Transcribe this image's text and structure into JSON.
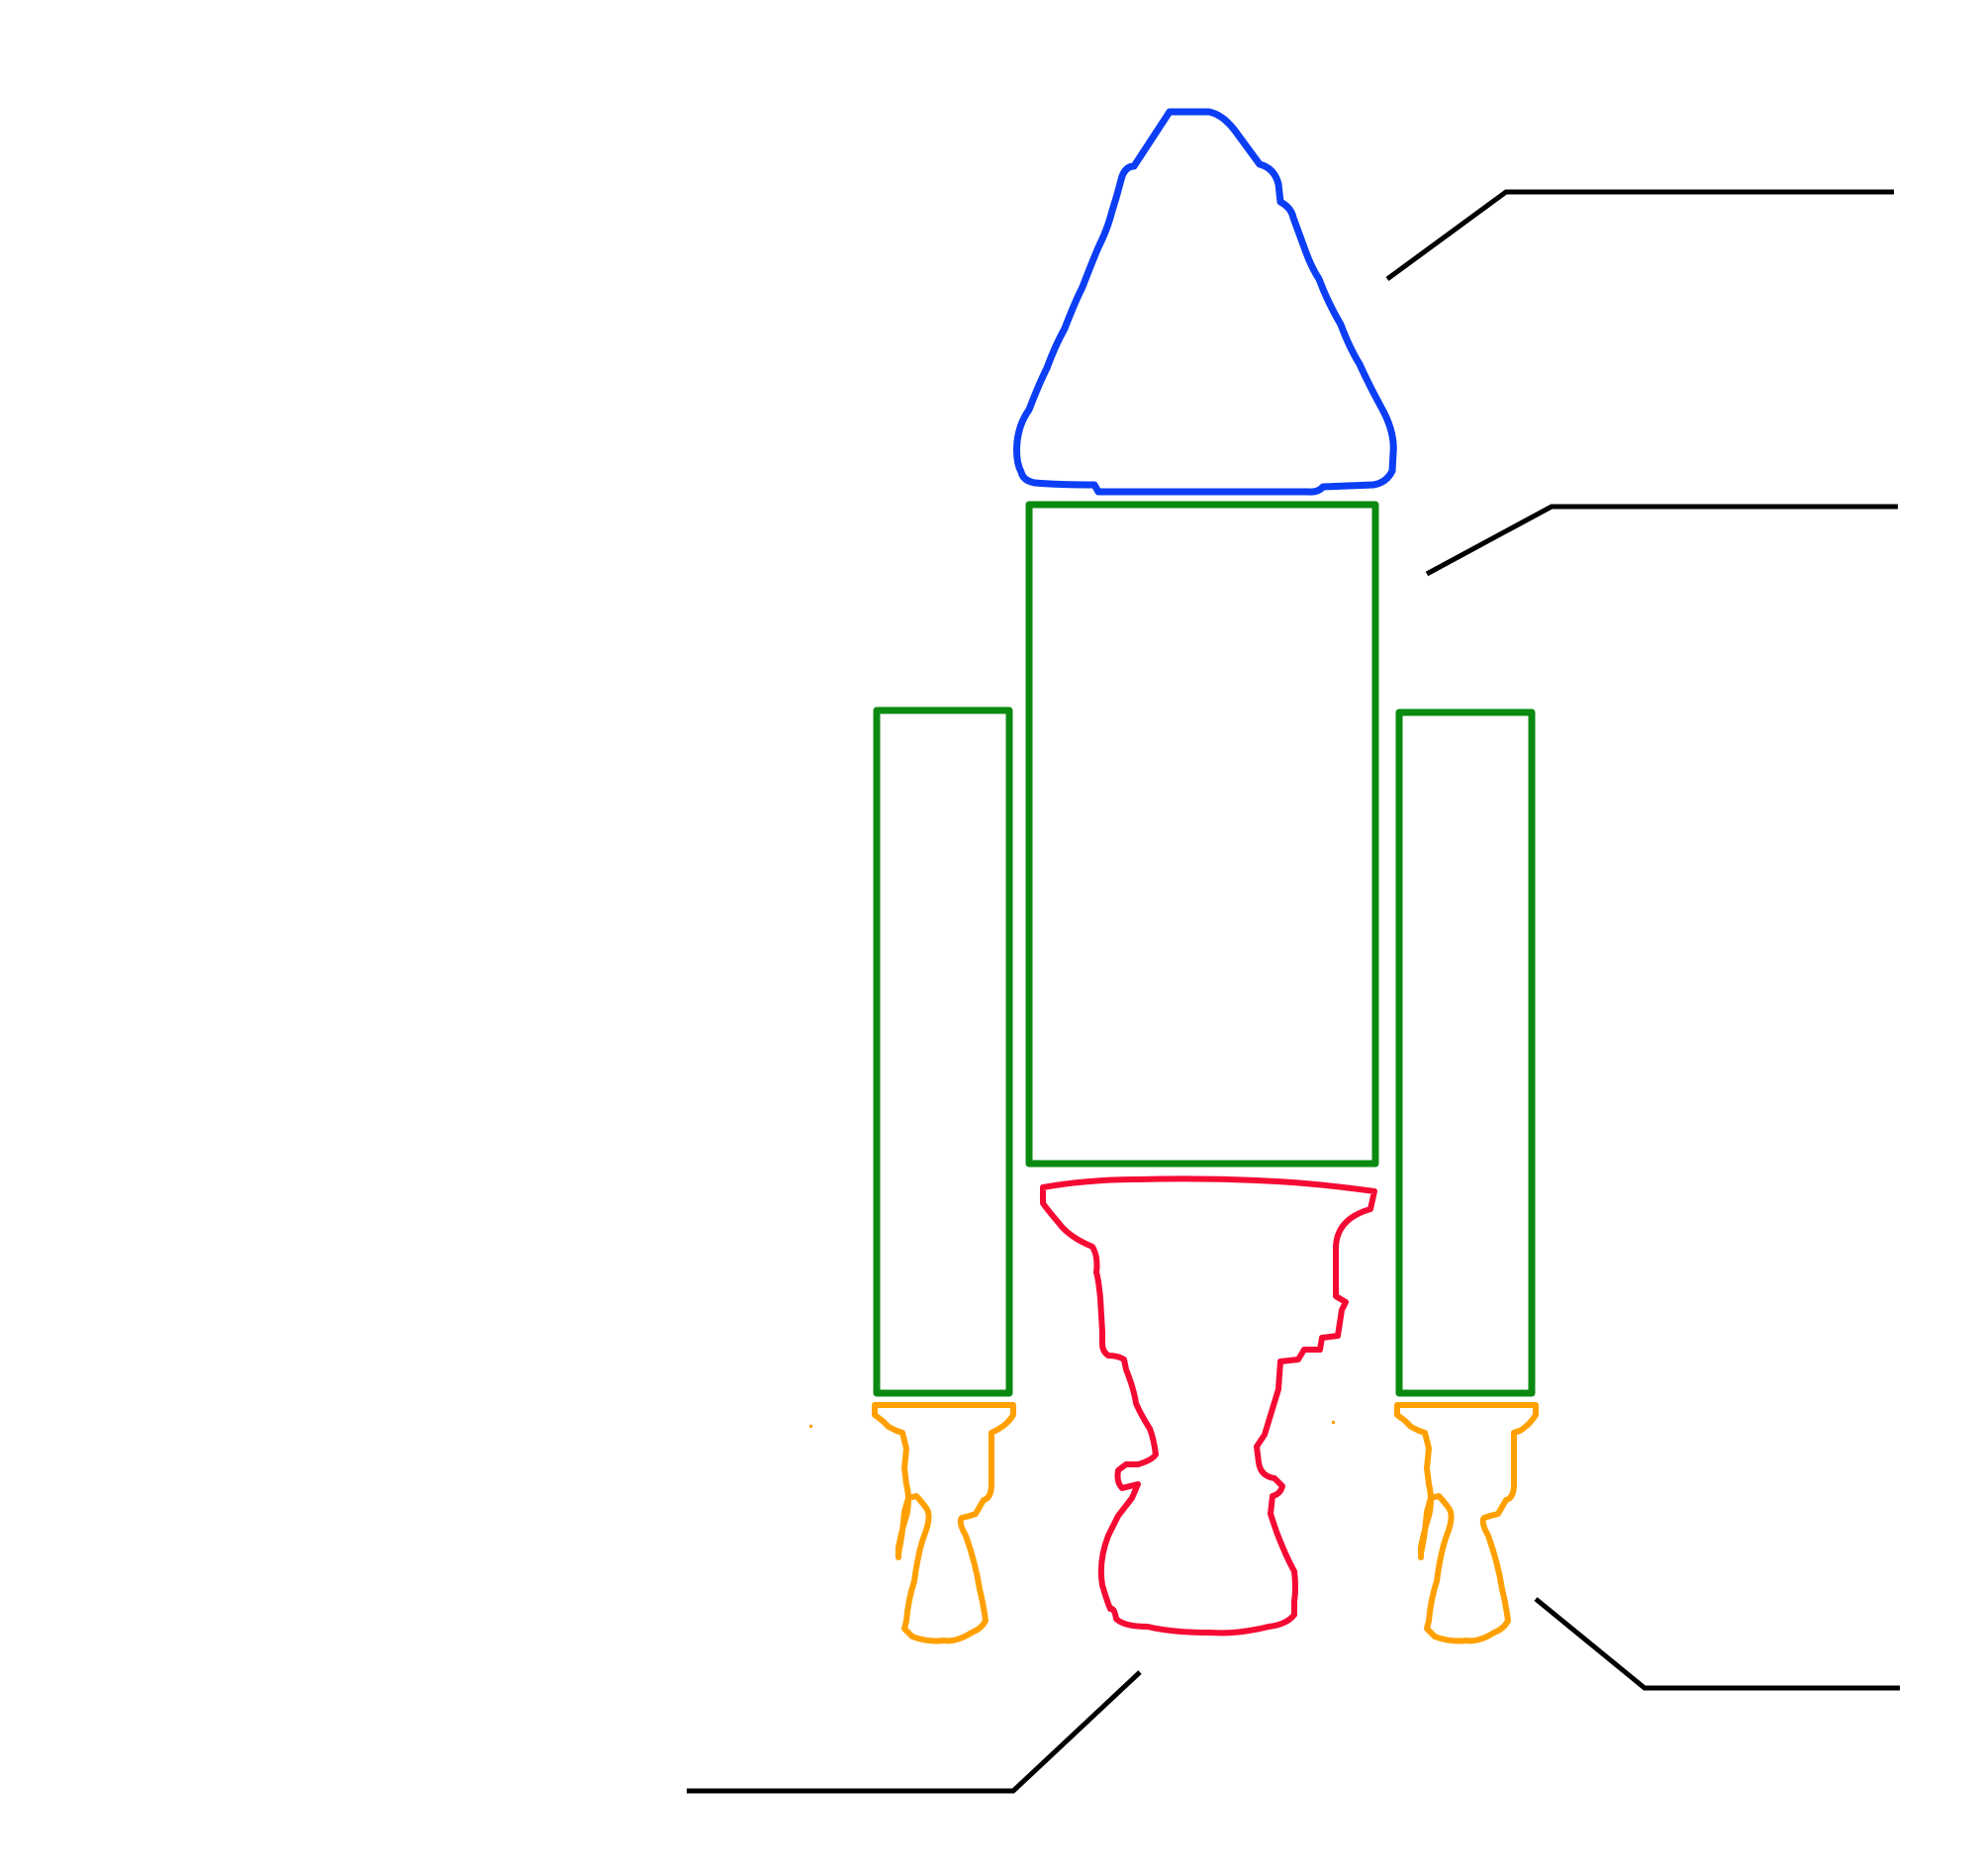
{
  "diagram": {
    "colors": {
      "capsule": "#0b3ef5",
      "stage": "#0b8a12",
      "booster": "#0b8a12",
      "main_engine": "#f50a33",
      "booster_engine": "#ffa000",
      "leader_line": "#000000",
      "background": "#ffffff"
    },
    "parts": [
      {
        "id": "capsule",
        "shape": "rounded-cone"
      },
      {
        "id": "core-stage",
        "shape": "rectangle"
      },
      {
        "id": "left-booster",
        "shape": "rectangle"
      },
      {
        "id": "right-booster",
        "shape": "rectangle"
      },
      {
        "id": "main-engine",
        "shape": "engine-nozzle"
      },
      {
        "id": "left-booster-engine",
        "shape": "engine-nozzle"
      },
      {
        "id": "right-booster-engine",
        "shape": "engine-nozzle"
      }
    ],
    "labels": [
      {
        "id": "capsule-label",
        "text": ""
      },
      {
        "id": "stage-label",
        "text": ""
      },
      {
        "id": "main-engine-label",
        "text": ""
      },
      {
        "id": "booster-engine-label",
        "text": ""
      }
    ]
  }
}
